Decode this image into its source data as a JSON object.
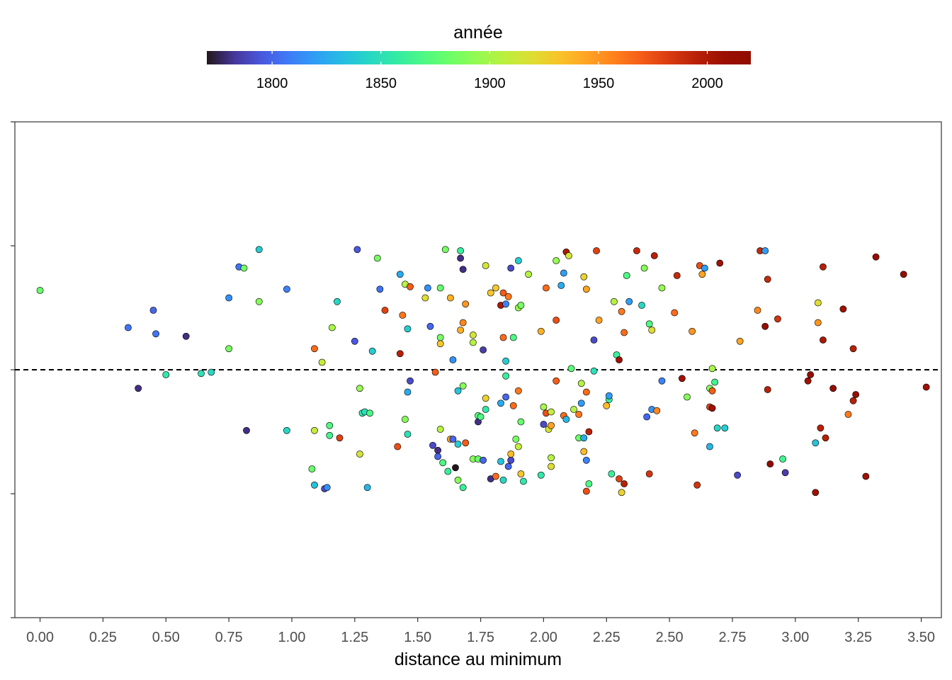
{
  "chart_data": {
    "type": "scatter",
    "title": "",
    "xlabel": "distance au minimum",
    "ylabel": "",
    "xlim": [
      -0.1,
      3.58
    ],
    "ylim": [
      -2.0,
      2.0
    ],
    "x_ticks": [
      0,
      0.25,
      0.5,
      0.75,
      1.0,
      1.25,
      1.5,
      1.75,
      2.0,
      2.25,
      2.5,
      2.75,
      3.0,
      3.25,
      3.5
    ],
    "x_tick_labels": [
      "0.00",
      "0.25",
      "0.50",
      "0.75",
      "1.00",
      "1.25",
      "1.50",
      "1.75",
      "2.00",
      "2.25",
      "2.50",
      "2.75",
      "3.00",
      "3.25",
      "3.50"
    ],
    "y_ticks": [
      -2,
      -1,
      0,
      1,
      2
    ],
    "y_tick_labels": [
      "",
      "",
      "",
      "",
      ""
    ],
    "reference_line": {
      "y": 0,
      "style": "dashed"
    },
    "grid": false,
    "color_scale": {
      "title": "année",
      "palette": "turbo",
      "range": [
        1770,
        2020
      ],
      "ticks": [
        1800,
        1850,
        1900,
        1950,
        2000
      ],
      "tick_labels": [
        "1800",
        "1850",
        "1900",
        "1950",
        "2000"
      ],
      "legend_position": "top"
    },
    "points": [
      {
        "x": 0.0,
        "y": 0.64,
        "year": 1880
      },
      {
        "x": 0.35,
        "y": 0.34,
        "year": 1805
      },
      {
        "x": 0.39,
        "y": -0.15,
        "year": 1780
      },
      {
        "x": 0.45,
        "y": 0.48,
        "year": 1800
      },
      {
        "x": 0.46,
        "y": 0.29,
        "year": 1805
      },
      {
        "x": 0.5,
        "y": -0.04,
        "year": 1855
      },
      {
        "x": 0.58,
        "y": 0.27,
        "year": 1780
      },
      {
        "x": 0.64,
        "y": -0.03,
        "year": 1850
      },
      {
        "x": 0.68,
        "y": -0.02,
        "year": 1845
      },
      {
        "x": 0.75,
        "y": 0.17,
        "year": 1885
      },
      {
        "x": 0.75,
        "y": 0.58,
        "year": 1815
      },
      {
        "x": 0.79,
        "y": 0.83,
        "year": 1805
      },
      {
        "x": 0.81,
        "y": 0.82,
        "year": 1885
      },
      {
        "x": 0.82,
        "y": -0.49,
        "year": 1780
      },
      {
        "x": 0.87,
        "y": 0.55,
        "year": 1890
      },
      {
        "x": 0.87,
        "y": 0.97,
        "year": 1840
      },
      {
        "x": 0.98,
        "y": 0.65,
        "year": 1810
      },
      {
        "x": 0.98,
        "y": -0.49,
        "year": 1845
      },
      {
        "x": 1.08,
        "y": -0.8,
        "year": 1880
      },
      {
        "x": 1.09,
        "y": -0.93,
        "year": 1835
      },
      {
        "x": 1.09,
        "y": 0.17,
        "year": 1965
      },
      {
        "x": 1.09,
        "y": -0.49,
        "year": 1910
      },
      {
        "x": 1.12,
        "y": 0.06,
        "year": 1910
      },
      {
        "x": 1.13,
        "y": -0.96,
        "year": 1790
      },
      {
        "x": 1.14,
        "y": -0.95,
        "year": 1815
      },
      {
        "x": 1.15,
        "y": -0.45,
        "year": 1870
      },
      {
        "x": 1.15,
        "y": -0.53,
        "year": 1865
      },
      {
        "x": 1.16,
        "y": 0.34,
        "year": 1900
      },
      {
        "x": 1.18,
        "y": 0.55,
        "year": 1845
      },
      {
        "x": 1.19,
        "y": -0.55,
        "year": 1980
      },
      {
        "x": 1.25,
        "y": 0.23,
        "year": 1795
      },
      {
        "x": 1.26,
        "y": 0.97,
        "year": 1795
      },
      {
        "x": 1.27,
        "y": -0.68,
        "year": 1915
      },
      {
        "x": 1.27,
        "y": -0.15,
        "year": 1895
      },
      {
        "x": 1.28,
        "y": -0.35,
        "year": 1855
      },
      {
        "x": 1.29,
        "y": -0.34,
        "year": 1850
      },
      {
        "x": 1.3,
        "y": -0.95,
        "year": 1830
      },
      {
        "x": 1.31,
        "y": -0.35,
        "year": 1870
      },
      {
        "x": 1.32,
        "y": 0.15,
        "year": 1840
      },
      {
        "x": 1.34,
        "y": 0.9,
        "year": 1885
      },
      {
        "x": 1.35,
        "y": 0.65,
        "year": 1805
      },
      {
        "x": 1.37,
        "y": 0.48,
        "year": 1980
      },
      {
        "x": 1.42,
        "y": -0.62,
        "year": 1975
      },
      {
        "x": 1.43,
        "y": 0.13,
        "year": 1995
      },
      {
        "x": 1.43,
        "y": 0.77,
        "year": 1825
      },
      {
        "x": 1.44,
        "y": 0.44,
        "year": 1960
      },
      {
        "x": 1.45,
        "y": -0.4,
        "year": 1890
      },
      {
        "x": 1.45,
        "y": 0.69,
        "year": 1905
      },
      {
        "x": 1.46,
        "y": -0.52,
        "year": 1850
      },
      {
        "x": 1.46,
        "y": 0.33,
        "year": 1840
      },
      {
        "x": 1.46,
        "y": -0.18,
        "year": 1825
      },
      {
        "x": 1.47,
        "y": 0.67,
        "year": 1970
      },
      {
        "x": 1.47,
        "y": -0.09,
        "year": 1790
      },
      {
        "x": 1.53,
        "y": 0.58,
        "year": 1920
      },
      {
        "x": 1.54,
        "y": 0.66,
        "year": 1815
      },
      {
        "x": 1.55,
        "y": 0.35,
        "year": 1800
      },
      {
        "x": 1.56,
        "y": -0.61,
        "year": 1790
      },
      {
        "x": 1.57,
        "y": -0.02,
        "year": 1970
      },
      {
        "x": 1.58,
        "y": -0.65,
        "year": 1780
      },
      {
        "x": 1.58,
        "y": -0.7,
        "year": 1800
      },
      {
        "x": 1.59,
        "y": -0.48,
        "year": 1905
      },
      {
        "x": 1.59,
        "y": 0.26,
        "year": 1885
      },
      {
        "x": 1.59,
        "y": 0.21,
        "year": 1930
      },
      {
        "x": 1.59,
        "y": 0.66,
        "year": 1880
      },
      {
        "x": 1.6,
        "y": -0.75,
        "year": 1870
      },
      {
        "x": 1.61,
        "y": 0.97,
        "year": 1885
      },
      {
        "x": 1.62,
        "y": -0.82,
        "year": 1860
      },
      {
        "x": 1.63,
        "y": 0.58,
        "year": 1940
      },
      {
        "x": 1.63,
        "y": -0.56,
        "year": 1945
      },
      {
        "x": 1.64,
        "y": 0.08,
        "year": 1815
      },
      {
        "x": 1.64,
        "y": -0.56,
        "year": 1800
      },
      {
        "x": 1.65,
        "y": -0.79,
        "year": 1770
      },
      {
        "x": 1.66,
        "y": -0.6,
        "year": 1840
      },
      {
        "x": 1.66,
        "y": -0.17,
        "year": 1835
      },
      {
        "x": 1.66,
        "y": -0.89,
        "year": 1890
      },
      {
        "x": 1.67,
        "y": 0.96,
        "year": 1860
      },
      {
        "x": 1.67,
        "y": 0.32,
        "year": 1940
      },
      {
        "x": 1.67,
        "y": 0.9,
        "year": 1780
      },
      {
        "x": 1.68,
        "y": 0.81,
        "year": 1780
      },
      {
        "x": 1.68,
        "y": -0.95,
        "year": 1860
      },
      {
        "x": 1.68,
        "y": 0.38,
        "year": 1955
      },
      {
        "x": 1.68,
        "y": -0.13,
        "year": 1890
      },
      {
        "x": 1.69,
        "y": 0.53,
        "year": 1950
      },
      {
        "x": 1.69,
        "y": -0.59,
        "year": 1970
      },
      {
        "x": 1.72,
        "y": -0.72,
        "year": 1890
      },
      {
        "x": 1.72,
        "y": 0.28,
        "year": 1915
      },
      {
        "x": 1.72,
        "y": 0.22,
        "year": 1905
      },
      {
        "x": 1.74,
        "y": -0.37,
        "year": 1875
      },
      {
        "x": 1.74,
        "y": -0.42,
        "year": 1780
      },
      {
        "x": 1.74,
        "y": -0.72,
        "year": 1880
      },
      {
        "x": 1.75,
        "y": -0.38,
        "year": 1870
      },
      {
        "x": 1.76,
        "y": 0.16,
        "year": 1785
      },
      {
        "x": 1.76,
        "y": -0.73,
        "year": 1800
      },
      {
        "x": 1.77,
        "y": -0.32,
        "year": 1855
      },
      {
        "x": 1.77,
        "y": -0.23,
        "year": 1925
      },
      {
        "x": 1.77,
        "y": 0.84,
        "year": 1915
      },
      {
        "x": 1.79,
        "y": -0.88,
        "year": 1780
      },
      {
        "x": 1.79,
        "y": 0.62,
        "year": 1930
      },
      {
        "x": 1.81,
        "y": -0.86,
        "year": 1965
      },
      {
        "x": 1.81,
        "y": 0.66,
        "year": 1930
      },
      {
        "x": 1.83,
        "y": -0.27,
        "year": 1825
      },
      {
        "x": 1.83,
        "y": -0.74,
        "year": 1835
      },
      {
        "x": 1.83,
        "y": 0.52,
        "year": 2000
      },
      {
        "x": 1.84,
        "y": -0.89,
        "year": 1845
      },
      {
        "x": 1.84,
        "y": 0.62,
        "year": 1970
      },
      {
        "x": 1.84,
        "y": 0.26,
        "year": 1965
      },
      {
        "x": 1.85,
        "y": 0.07,
        "year": 1840
      },
      {
        "x": 1.85,
        "y": -0.22,
        "year": 1800
      },
      {
        "x": 1.85,
        "y": 0.53,
        "year": 1810
      },
      {
        "x": 1.85,
        "y": -0.05,
        "year": 1860
      },
      {
        "x": 1.86,
        "y": -0.78,
        "year": 1800
      },
      {
        "x": 1.86,
        "y": 0.59,
        "year": 1960
      },
      {
        "x": 1.87,
        "y": -0.73,
        "year": 1790
      },
      {
        "x": 1.87,
        "y": 0.82,
        "year": 1790
      },
      {
        "x": 1.87,
        "y": -0.68,
        "year": 1935
      },
      {
        "x": 1.88,
        "y": 0.26,
        "year": 1870
      },
      {
        "x": 1.88,
        "y": -0.29,
        "year": 1965
      },
      {
        "x": 1.89,
        "y": -0.56,
        "year": 1885
      },
      {
        "x": 1.9,
        "y": -0.17,
        "year": 1960
      },
      {
        "x": 1.9,
        "y": -0.62,
        "year": 1910
      },
      {
        "x": 1.9,
        "y": 0.5,
        "year": 1895
      },
      {
        "x": 1.9,
        "y": 0.88,
        "year": 1840
      },
      {
        "x": 1.91,
        "y": 0.52,
        "year": 1885
      },
      {
        "x": 1.91,
        "y": -0.84,
        "year": 1930
      },
      {
        "x": 1.91,
        "y": -0.42,
        "year": 1880
      },
      {
        "x": 1.92,
        "y": -0.9,
        "year": 1855
      },
      {
        "x": 1.94,
        "y": 0.77,
        "year": 1905
      },
      {
        "x": 1.99,
        "y": -0.85,
        "year": 1855
      },
      {
        "x": 1.99,
        "y": 0.31,
        "year": 1940
      },
      {
        "x": 2.0,
        "y": -0.44,
        "year": 1790
      },
      {
        "x": 2.0,
        "y": -0.3,
        "year": 1900
      },
      {
        "x": 2.01,
        "y": 0.66,
        "year": 1965
      },
      {
        "x": 2.01,
        "y": -0.35,
        "year": 1975
      },
      {
        "x": 2.02,
        "y": -0.48,
        "year": 1915
      },
      {
        "x": 2.03,
        "y": -0.45,
        "year": 1945
      },
      {
        "x": 2.03,
        "y": -0.34,
        "year": 1910
      },
      {
        "x": 2.03,
        "y": -0.78,
        "year": 1920
      },
      {
        "x": 2.03,
        "y": -0.71,
        "year": 1905
      },
      {
        "x": 2.05,
        "y": -0.09,
        "year": 1970
      },
      {
        "x": 2.05,
        "y": 0.88,
        "year": 1895
      },
      {
        "x": 2.05,
        "y": 0.4,
        "year": 1975
      },
      {
        "x": 2.07,
        "y": 0.68,
        "year": 1825
      },
      {
        "x": 2.08,
        "y": -0.37,
        "year": 1965
      },
      {
        "x": 2.08,
        "y": 0.78,
        "year": 1820
      },
      {
        "x": 2.09,
        "y": 0.95,
        "year": 2000
      },
      {
        "x": 2.09,
        "y": -0.4,
        "year": 1830
      },
      {
        "x": 2.1,
        "y": 0.92,
        "year": 1915
      },
      {
        "x": 2.11,
        "y": 0.01,
        "year": 1875
      },
      {
        "x": 2.12,
        "y": -0.32,
        "year": 1905
      },
      {
        "x": 2.14,
        "y": -0.36,
        "year": 1960
      },
      {
        "x": 2.14,
        "y": -0.55,
        "year": 1880
      },
      {
        "x": 2.15,
        "y": -0.27,
        "year": 1820
      },
      {
        "x": 2.15,
        "y": -0.11,
        "year": 1905
      },
      {
        "x": 2.16,
        "y": -0.55,
        "year": 1825
      },
      {
        "x": 2.16,
        "y": -0.66,
        "year": 1935
      },
      {
        "x": 2.16,
        "y": 0.75,
        "year": 1925
      },
      {
        "x": 2.17,
        "y": -0.73,
        "year": 1810
      },
      {
        "x": 2.17,
        "y": 0.65,
        "year": 1945
      },
      {
        "x": 2.17,
        "y": -0.18,
        "year": 1965
      },
      {
        "x": 2.17,
        "y": -0.98,
        "year": 1975
      },
      {
        "x": 2.18,
        "y": -0.92,
        "year": 1870
      },
      {
        "x": 2.18,
        "y": -0.5,
        "year": 1995
      },
      {
        "x": 2.2,
        "y": 0.24,
        "year": 1790
      },
      {
        "x": 2.2,
        "y": -0.01,
        "year": 1850
      },
      {
        "x": 2.21,
        "y": 0.96,
        "year": 1980
      },
      {
        "x": 2.22,
        "y": 0.4,
        "year": 1945
      },
      {
        "x": 2.25,
        "y": -0.29,
        "year": 1935
      },
      {
        "x": 2.26,
        "y": -0.24,
        "year": 1860
      },
      {
        "x": 2.26,
        "y": -0.21,
        "year": 1820
      },
      {
        "x": 2.27,
        "y": -0.84,
        "year": 1860
      },
      {
        "x": 2.28,
        "y": 0.55,
        "year": 1905
      },
      {
        "x": 2.29,
        "y": 0.12,
        "year": 1860
      },
      {
        "x": 2.3,
        "y": -0.88,
        "year": 1980
      },
      {
        "x": 2.3,
        "y": 0.08,
        "year": 2005
      },
      {
        "x": 2.31,
        "y": -0.99,
        "year": 1925
      },
      {
        "x": 2.31,
        "y": 0.47,
        "year": 1960
      },
      {
        "x": 2.32,
        "y": -0.92,
        "year": 1995
      },
      {
        "x": 2.32,
        "y": 0.3,
        "year": 1965
      },
      {
        "x": 2.33,
        "y": 0.76,
        "year": 1870
      },
      {
        "x": 2.34,
        "y": 0.55,
        "year": 1820
      },
      {
        "x": 2.37,
        "y": 0.96,
        "year": 1990
      },
      {
        "x": 2.39,
        "y": 0.52,
        "year": 1845
      },
      {
        "x": 2.4,
        "y": 0.82,
        "year": 1890
      },
      {
        "x": 2.41,
        "y": -0.38,
        "year": 1800
      },
      {
        "x": 2.42,
        "y": 0.37,
        "year": 1870
      },
      {
        "x": 2.42,
        "y": -0.84,
        "year": 1985
      },
      {
        "x": 2.43,
        "y": -0.32,
        "year": 1815
      },
      {
        "x": 2.43,
        "y": 0.32,
        "year": 1920
      },
      {
        "x": 2.44,
        "y": 0.92,
        "year": 1995
      },
      {
        "x": 2.45,
        "y": -0.33,
        "year": 1955
      },
      {
        "x": 2.47,
        "y": -0.09,
        "year": 1810
      },
      {
        "x": 2.47,
        "y": 0.66,
        "year": 1895
      },
      {
        "x": 2.52,
        "y": 0.46,
        "year": 1965
      },
      {
        "x": 2.53,
        "y": 0.76,
        "year": 1990
      },
      {
        "x": 2.55,
        "y": -0.07,
        "year": 2005
      },
      {
        "x": 2.57,
        "y": -0.22,
        "year": 1890
      },
      {
        "x": 2.59,
        "y": 0.31,
        "year": 1950
      },
      {
        "x": 2.6,
        "y": -0.51,
        "year": 1960
      },
      {
        "x": 2.61,
        "y": -0.93,
        "year": 1985
      },
      {
        "x": 2.62,
        "y": 0.84,
        "year": 1975
      },
      {
        "x": 2.63,
        "y": 0.77,
        "year": 1945
      },
      {
        "x": 2.64,
        "y": 0.82,
        "year": 1820
      },
      {
        "x": 2.66,
        "y": -0.15,
        "year": 1890
      },
      {
        "x": 2.66,
        "y": -0.3,
        "year": 1980
      },
      {
        "x": 2.66,
        "y": -0.62,
        "year": 1830
      },
      {
        "x": 2.67,
        "y": 0.01,
        "year": 1900
      },
      {
        "x": 2.67,
        "y": -0.31,
        "year": 2005
      },
      {
        "x": 2.67,
        "y": -0.17,
        "year": 1970
      },
      {
        "x": 2.68,
        "y": -0.1,
        "year": 1865
      },
      {
        "x": 2.69,
        "y": -0.47,
        "year": 1845
      },
      {
        "x": 2.7,
        "y": 0.86,
        "year": 2005
      },
      {
        "x": 2.72,
        "y": -0.47,
        "year": 1840
      },
      {
        "x": 2.77,
        "y": -0.85,
        "year": 1790
      },
      {
        "x": 2.78,
        "y": 0.23,
        "year": 1945
      },
      {
        "x": 2.85,
        "y": 0.48,
        "year": 1955
      },
      {
        "x": 2.86,
        "y": 0.96,
        "year": 1990
      },
      {
        "x": 2.88,
        "y": 0.35,
        "year": 2010
      },
      {
        "x": 2.88,
        "y": 0.96,
        "year": 1820
      },
      {
        "x": 2.89,
        "y": -0.16,
        "year": 1995
      },
      {
        "x": 2.89,
        "y": 0.73,
        "year": 1990
      },
      {
        "x": 2.9,
        "y": -0.76,
        "year": 2015
      },
      {
        "x": 2.93,
        "y": 0.41,
        "year": 1985
      },
      {
        "x": 2.95,
        "y": -0.72,
        "year": 1865
      },
      {
        "x": 2.96,
        "y": -0.83,
        "year": 1785
      },
      {
        "x": 3.05,
        "y": -0.09,
        "year": 2005
      },
      {
        "x": 3.06,
        "y": -0.04,
        "year": 2010
      },
      {
        "x": 3.08,
        "y": -0.99,
        "year": 2005
      },
      {
        "x": 3.08,
        "y": -0.59,
        "year": 1835
      },
      {
        "x": 3.09,
        "y": 0.38,
        "year": 1950
      },
      {
        "x": 3.09,
        "y": 0.54,
        "year": 1920
      },
      {
        "x": 3.1,
        "y": -0.47,
        "year": 1995
      },
      {
        "x": 3.11,
        "y": 0.24,
        "year": 2000
      },
      {
        "x": 3.11,
        "y": 0.83,
        "year": 1995
      },
      {
        "x": 3.12,
        "y": -0.55,
        "year": 1995
      },
      {
        "x": 3.15,
        "y": -0.15,
        "year": 2010
      },
      {
        "x": 3.19,
        "y": 0.49,
        "year": 2005
      },
      {
        "x": 3.21,
        "y": -0.36,
        "year": 1960
      },
      {
        "x": 3.23,
        "y": 0.17,
        "year": 1995
      },
      {
        "x": 3.23,
        "y": -0.25,
        "year": 1995
      },
      {
        "x": 3.24,
        "y": -0.2,
        "year": 2010
      },
      {
        "x": 3.28,
        "y": -0.86,
        "year": 2005
      },
      {
        "x": 3.32,
        "y": 0.91,
        "year": 2010
      },
      {
        "x": 3.43,
        "y": 0.77,
        "year": 2010
      },
      {
        "x": 3.52,
        "y": -0.14,
        "year": 2005
      }
    ]
  }
}
